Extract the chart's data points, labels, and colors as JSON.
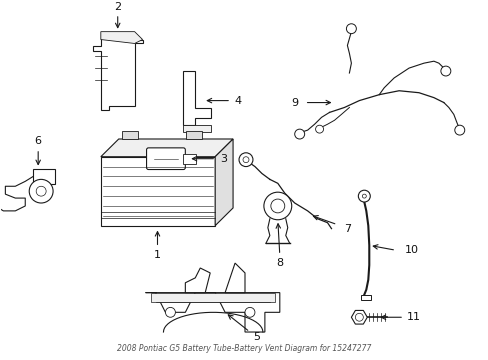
{
  "title": "2008 Pontiac G5 Battery Tube-Battery Vent Diagram for 15247277",
  "bg_color": "#ffffff",
  "line_color": "#1a1a1a",
  "text_color": "#111111"
}
